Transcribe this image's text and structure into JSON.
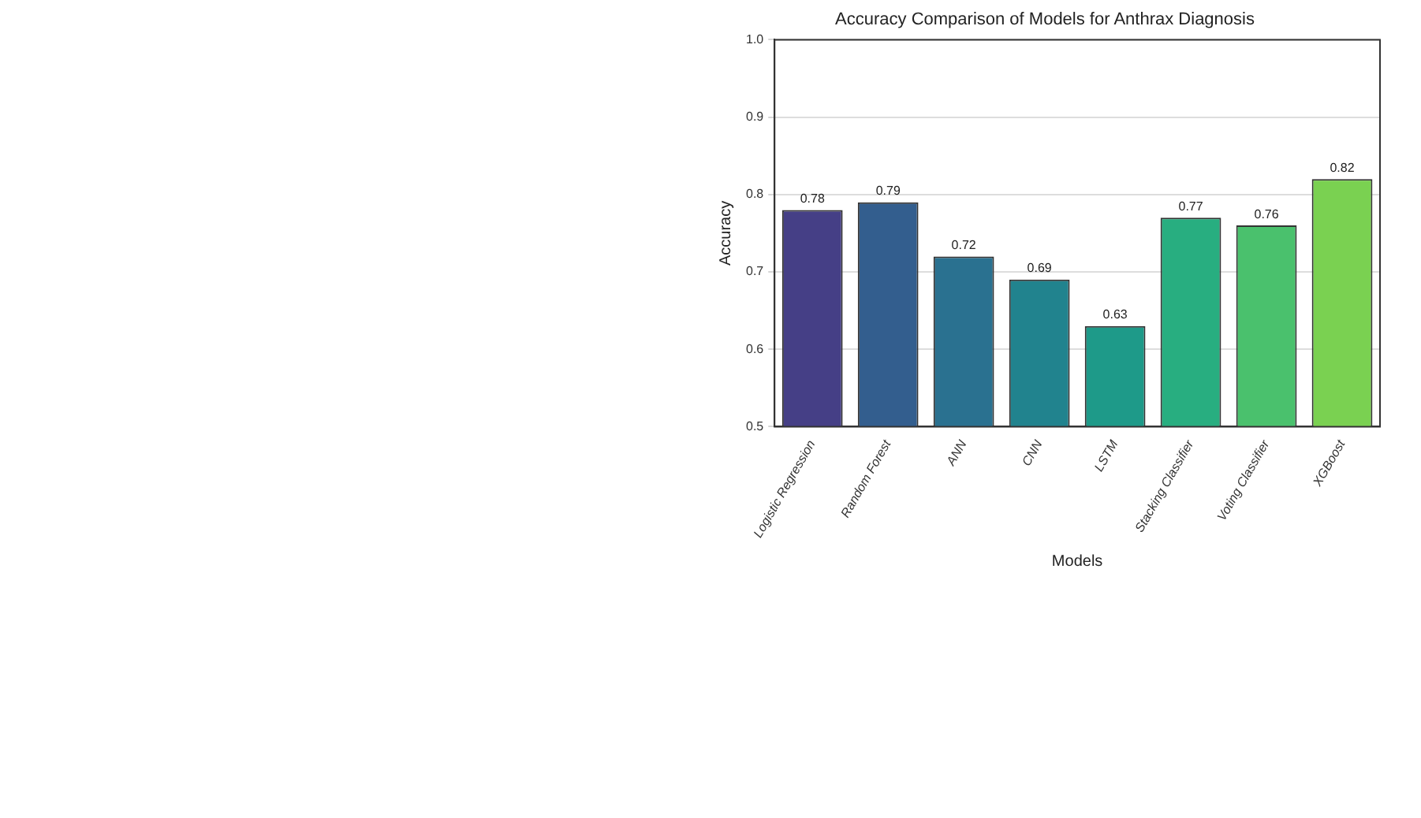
{
  "chart_data": {
    "type": "bar",
    "title": "Accuracy Comparison of Models for Anthrax Diagnosis",
    "xlabel": "Models",
    "ylabel": "Accuracy",
    "categories": [
      "Logistic Regression",
      "Random Forest",
      "ANN",
      "CNN",
      "LSTM",
      "Stacking Classifier",
      "Voting Classifier",
      "XGBoost"
    ],
    "values": [
      0.78,
      0.79,
      0.72,
      0.69,
      0.63,
      0.77,
      0.76,
      0.82
    ],
    "colors": [
      "#453f86",
      "#335e8e",
      "#2a7190",
      "#21838e",
      "#1e9a89",
      "#28ae80",
      "#4ac16d",
      "#7ad151"
    ],
    "ylim": [
      0.5,
      1.0
    ],
    "yticks": [
      {
        "value": 0.5,
        "label": "0.5"
      },
      {
        "value": 0.6,
        "label": "0.6"
      },
      {
        "value": 0.7,
        "label": "0.7"
      },
      {
        "value": 0.8,
        "label": "0.8"
      },
      {
        "value": 0.9,
        "label": "0.9"
      },
      {
        "value": 1.0,
        "label": "1.0"
      }
    ],
    "grid": "y",
    "data_labels": true
  }
}
